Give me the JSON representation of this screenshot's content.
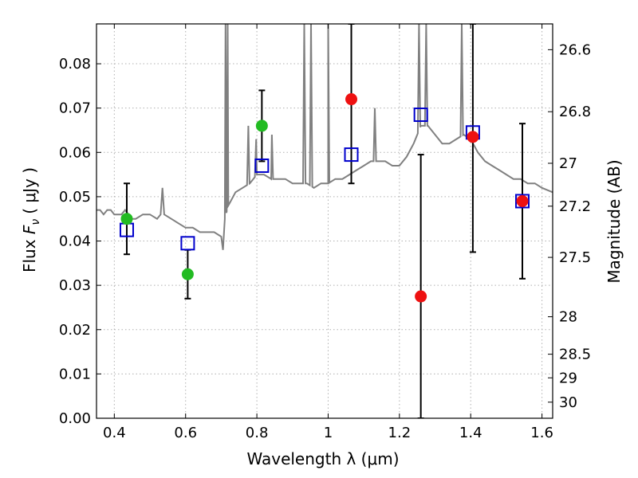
{
  "chart_data": {
    "type": "scatter",
    "title": "",
    "xlabel": "Wavelength  λ (μm)",
    "ylabel": "Flux  F_ν  ( μJy )",
    "ylabel_parts": {
      "prefix": "Flux  ",
      "symbol": "F",
      "subscript": "ν",
      "unit": "(  μJy )"
    },
    "y2label": "Magnitude (AB)",
    "xlim": [
      0.35,
      1.63
    ],
    "ylim": [
      0.0,
      0.089
    ],
    "grid": true,
    "x_ticks": [
      0.4,
      0.6,
      0.8,
      1.0,
      1.2,
      1.4,
      1.6
    ],
    "x_tick_labels": [
      "0.4",
      "0.6",
      "0.8",
      "1",
      "1.2",
      "1.4",
      "1.6"
    ],
    "y_ticks": [
      0.0,
      0.01,
      0.02,
      0.03,
      0.04,
      0.05,
      0.06,
      0.07,
      0.08
    ],
    "y_tick_labels": [
      "0.00",
      "0.01",
      "0.02",
      "0.03",
      "0.04",
      "0.05",
      "0.06",
      "0.07",
      "0.08"
    ],
    "magnitude_ticks": [
      "26.6",
      "26.8",
      "27",
      "27.2",
      "27.5",
      "28",
      "28.5",
      "29",
      "30"
    ],
    "colors": {
      "spectrum": "#808080",
      "green_points": "#22bb22",
      "red_points": "#ee1111",
      "model_squares": "#0000cc",
      "errorbars": "#000000",
      "grid": "#b0b0b0"
    },
    "spectrum": {
      "x": [
        0.35,
        0.36,
        0.37,
        0.38,
        0.39,
        0.4,
        0.41,
        0.42,
        0.43,
        0.44,
        0.45,
        0.46,
        0.48,
        0.5,
        0.52,
        0.53,
        0.535,
        0.54,
        0.56,
        0.58,
        0.6,
        0.62,
        0.64,
        0.66,
        0.68,
        0.7,
        0.705,
        0.71,
        0.72,
        0.74,
        0.76,
        0.78,
        0.79,
        0.8,
        0.82,
        0.84,
        0.86,
        0.88,
        0.9,
        0.92,
        0.94,
        0.96,
        0.98,
        1.0,
        1.02,
        1.04,
        1.06,
        1.08,
        1.1,
        1.12,
        1.14,
        1.16,
        1.18,
        1.2,
        1.22,
        1.24,
        1.26,
        1.28,
        1.3,
        1.32,
        1.34,
        1.36,
        1.38,
        1.4,
        1.42,
        1.44,
        1.46,
        1.48,
        1.5,
        1.52,
        1.54,
        1.56,
        1.58,
        1.6,
        1.63
      ],
      "y": [
        0.047,
        0.047,
        0.046,
        0.047,
        0.047,
        0.046,
        0.046,
        0.046,
        0.047,
        0.046,
        0.045,
        0.045,
        0.046,
        0.046,
        0.045,
        0.046,
        0.052,
        0.046,
        0.045,
        0.044,
        0.043,
        0.043,
        0.042,
        0.042,
        0.042,
        0.041,
        0.038,
        0.045,
        0.048,
        0.051,
        0.052,
        0.053,
        0.054,
        0.055,
        0.055,
        0.054,
        0.054,
        0.054,
        0.053,
        0.053,
        0.053,
        0.052,
        0.053,
        0.053,
        0.054,
        0.054,
        0.055,
        0.056,
        0.057,
        0.058,
        0.058,
        0.058,
        0.057,
        0.057,
        0.059,
        0.062,
        0.066,
        0.066,
        0.064,
        0.062,
        0.062,
        0.063,
        0.064,
        0.063,
        0.06,
        0.058,
        0.057,
        0.056,
        0.055,
        0.054,
        0.054,
        0.053,
        0.053,
        0.052,
        0.051
      ]
    },
    "emission_lines": [
      {
        "x": 0.712,
        "peak": 0.089
      },
      {
        "x": 0.718,
        "peak": 0.089
      },
      {
        "x": 0.776,
        "peak": 0.066
      },
      {
        "x": 0.798,
        "peak": 0.063
      },
      {
        "x": 0.842,
        "peak": 0.064
      },
      {
        "x": 0.933,
        "peak": 0.089
      },
      {
        "x": 0.952,
        "peak": 0.089
      },
      {
        "x": 1.0,
        "peak": 0.089
      },
      {
        "x": 1.131,
        "peak": 0.07
      },
      {
        "x": 1.255,
        "peak": 0.089
      },
      {
        "x": 1.275,
        "peak": 0.089
      },
      {
        "x": 1.375,
        "peak": 0.089
      }
    ],
    "green_points": [
      {
        "x": 0.435,
        "y": 0.045,
        "yerr_low": 0.037,
        "yerr_high": 0.053
      },
      {
        "x": 0.606,
        "y": 0.0325,
        "yerr_low": 0.027,
        "yerr_high": 0.038
      },
      {
        "x": 0.814,
        "y": 0.066,
        "yerr_low": 0.058,
        "yerr_high": 0.074
      }
    ],
    "red_points": [
      {
        "x": 1.065,
        "y": 0.072,
        "yerr_low": 0.053,
        "yerr_high": 0.089
      },
      {
        "x": 1.26,
        "y": 0.0275,
        "yerr_low": 0.0,
        "yerr_high": 0.0595
      },
      {
        "x": 1.406,
        "y": 0.0635,
        "yerr_low": 0.0375,
        "yerr_high": 0.089
      },
      {
        "x": 1.545,
        "y": 0.049,
        "yerr_low": 0.0315,
        "yerr_high": 0.0665
      }
    ],
    "model_squares": [
      {
        "x": 0.435,
        "y": 0.0425
      },
      {
        "x": 0.606,
        "y": 0.0395
      },
      {
        "x": 0.814,
        "y": 0.057
      },
      {
        "x": 1.065,
        "y": 0.0595
      },
      {
        "x": 1.26,
        "y": 0.0685
      },
      {
        "x": 1.406,
        "y": 0.0645
      },
      {
        "x": 1.545,
        "y": 0.049
      }
    ]
  }
}
